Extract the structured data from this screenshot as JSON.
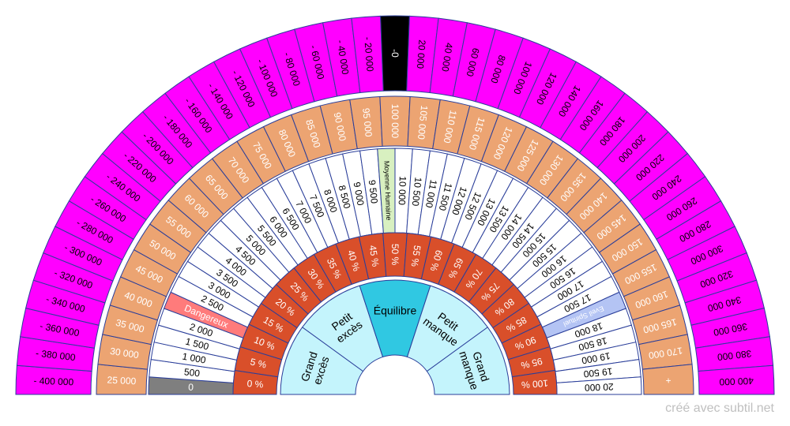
{
  "credit": "créé avec subtil.net",
  "colors": {
    "outer": "#ff00ff",
    "outer_highlight": "#000000",
    "second": "#eca472",
    "white_ring": "#ffffff",
    "percent": "#d94f2a",
    "center": "#c4f4fc",
    "center_highlight": "#30c8e2",
    "stroke": "#2a3e9a",
    "grey": "#7f7f7f",
    "danger": "#ff7b7b",
    "moyenne": "#d8f0c0",
    "eveil": "#b4c4f4"
  },
  "rings": {
    "outer": {
      "labels": [
        "- 400 000",
        "- 380 000",
        "- 360 000",
        "- 340 000",
        "- 320 000",
        "- 300 000",
        "- 280 000",
        "- 260 000",
        "- 240 000",
        "- 220 000",
        "- 200 000",
        "- 180 000",
        "- 160 000",
        "- 140 000",
        "- 120 000",
        "- 100 000",
        "- 80 000",
        "- 60 000",
        "- 40 000",
        "- 20 000",
        "-0",
        "20 000",
        "40 000",
        "60 000",
        "80 000",
        "100 000",
        "120 000",
        "140 000",
        "160 000",
        "180 000",
        "200 000",
        "220 000",
        "240 000",
        "260 000",
        "280 000",
        "300 000",
        "320 000",
        "340 000",
        "360 000",
        "380 000",
        "400 000"
      ],
      "highlight_index": 20
    },
    "second": {
      "labels": [
        "25 000",
        "30 000",
        "35 000",
        "40 000",
        "45 000",
        "50 000",
        "55 000",
        "60 000",
        "65 000",
        "70 000",
        "75 000",
        "80 000",
        "85 000",
        "90 000",
        "95 000",
        "100 000",
        "105 000",
        "110 000",
        "115 000",
        "120 000",
        "125 000",
        "130 000",
        "135 000",
        "140 000",
        "145 000",
        "150 000",
        "155 000",
        "160 000",
        "165 000",
        "170 000",
        "+"
      ]
    },
    "white": {
      "labels": [
        "0",
        "500",
        "1 000",
        "1 500",
        "2 000",
        "Dangereux",
        "2 500",
        "3 000",
        "3 500",
        "4 000",
        "4 500",
        "5 000",
        "5 500",
        "6 000",
        "6 500",
        "7 000",
        "7 500",
        "8 000",
        "8 500",
        "9 000",
        "9 500",
        "Moyenne Humaine",
        "10 000",
        "10 500",
        "11 000",
        "11 500",
        "12 000",
        "12 500",
        "13 000",
        "13 500",
        "14 000",
        "14 500",
        "15 000",
        "15 500",
        "16 000",
        "16 500",
        "17 000",
        "17 500",
        "Eveil Spirituel",
        "18 000",
        "18 500",
        "19 000",
        "19 500",
        "20 000"
      ],
      "special": {
        "0": "grey",
        "5": "danger",
        "21": "moyenne",
        "38": "eveil"
      }
    },
    "percent": {
      "labels": [
        "0 %",
        "5 %",
        "10 %",
        "15 %",
        "20 %",
        "25 %",
        "30 %",
        "35 %",
        "40 %",
        "45 %",
        "50 %",
        "55 %",
        "60 %",
        "65 %",
        "70 %",
        "75 %",
        "80 %",
        "85 %",
        "90 %",
        "95 %",
        "100 %"
      ]
    },
    "center": {
      "labels": [
        "Grand\nexcès",
        "Petit\nexcès",
        "Équilibre",
        "Petit\nmanque",
        "Grand\nmanque"
      ],
      "highlight_index": 2
    }
  }
}
